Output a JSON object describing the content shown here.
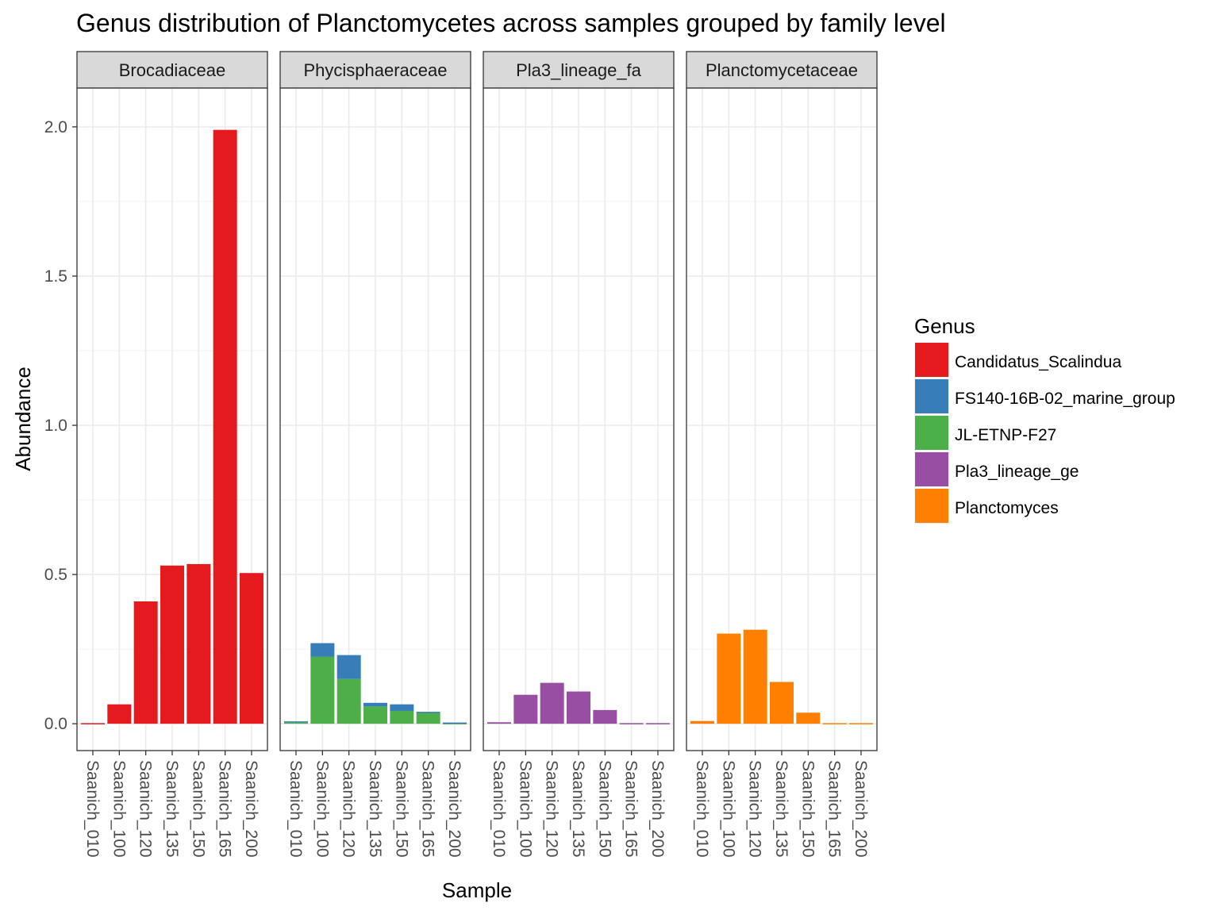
{
  "chart_data": {
    "type": "bar",
    "stacked": true,
    "title": "Genus distribution of Planctomycetes across samples grouped by family level",
    "xlabel": "Sample",
    "ylabel": "Abundance",
    "ylim": [
      -0.09,
      2.13
    ],
    "yticks": [
      "0.0",
      "0.5",
      "1.0",
      "1.5",
      "2.0"
    ],
    "grid": true,
    "legend_position": "right",
    "legend_title": "Genus",
    "categories": [
      "Saanich_010",
      "Saanich_100",
      "Saanich_120",
      "Saanich_135",
      "Saanich_150",
      "Saanich_165",
      "Saanich_200"
    ],
    "legend": [
      {
        "name": "Candidatus_Scalindua",
        "color": "#E41A1C"
      },
      {
        "name": "FS140-16B-02_marine_group",
        "color": "#377EB8"
      },
      {
        "name": "JL-ETNP-F27",
        "color": "#4DAF4A"
      },
      {
        "name": "Pla3_lineage_ge",
        "color": "#984EA3"
      },
      {
        "name": "Planctomyces",
        "color": "#FF7F00"
      }
    ],
    "facets": [
      {
        "label": "Brocadiaceae",
        "series": [
          {
            "name": "Candidatus_Scalindua",
            "color": "#E41A1C",
            "values": [
              0.002,
              0.065,
              0.41,
              0.53,
              0.535,
              1.99,
              0.505
            ]
          }
        ]
      },
      {
        "label": "Phycisphaeraceae",
        "series": [
          {
            "name": "JL-ETNP-F27",
            "color": "#4DAF4A",
            "values": [
              0.004,
              0.225,
              0.15,
              0.058,
              0.043,
              0.037,
              0.002
            ]
          },
          {
            "name": "FS140-16B-02_marine_group",
            "color": "#377EB8",
            "values": [
              0.004,
              0.045,
              0.08,
              0.012,
              0.022,
              0.003,
              0.002
            ]
          }
        ]
      },
      {
        "label": "Pla3_lineage_fa",
        "series": [
          {
            "name": "Pla3_lineage_ge",
            "color": "#984EA3",
            "values": [
              0.005,
              0.097,
              0.137,
              0.108,
              0.046,
              0.002,
              0.002
            ]
          }
        ]
      },
      {
        "label": "Planctomycetaceae",
        "series": [
          {
            "name": "Planctomyces",
            "color": "#FF7F00",
            "values": [
              0.009,
              0.302,
              0.315,
              0.14,
              0.037,
              0.002,
              0.002
            ]
          }
        ]
      }
    ]
  }
}
